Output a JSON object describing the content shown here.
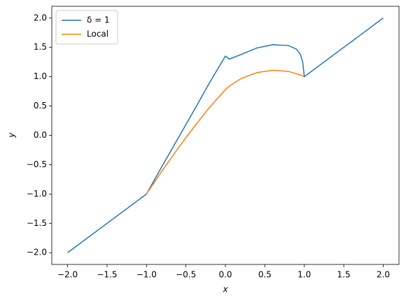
{
  "chart_data": {
    "type": "line",
    "x_label": "x",
    "y_label": "y",
    "x": [
      -2,
      -1.5,
      -1,
      -0.8,
      -0.6,
      -0.4,
      -0.2,
      0,
      0.05,
      0.2,
      0.4,
      0.6,
      0.8,
      0.9,
      0.95,
      0.98,
      1,
      1.5,
      2
    ],
    "series": [
      {
        "name": "δ = 1",
        "color": "#1f77b4",
        "values": [
          -2,
          -1.5,
          -1,
          -0.52,
          -0.05,
          0.42,
          0.9,
          1.35,
          1.3,
          1.38,
          1.49,
          1.545,
          1.53,
          1.47,
          1.38,
          1.25,
          1.0,
          1.5,
          2
        ]
      },
      {
        "name": "Local",
        "color": "#ff7f0e",
        "values": [
          null,
          null,
          -1,
          -0.6,
          -0.22,
          0.14,
          0.48,
          0.78,
          0.84,
          0.97,
          1.07,
          1.11,
          1.09,
          1.05,
          1.03,
          1.01,
          1.0,
          null,
          null
        ]
      }
    ],
    "xlim": [
      -2.2,
      2.2
    ],
    "ylim": [
      -2.2,
      2.2
    ],
    "xticks": [
      {
        "value": -2,
        "label": "−2.0"
      },
      {
        "value": -1.5,
        "label": "−1.5"
      },
      {
        "value": -1,
        "label": "−1.0"
      },
      {
        "value": -0.5,
        "label": "−0.5"
      },
      {
        "value": 0,
        "label": "0.0"
      },
      {
        "value": 0.5,
        "label": "0.5"
      },
      {
        "value": 1,
        "label": "1.0"
      },
      {
        "value": 1.5,
        "label": "1.5"
      },
      {
        "value": 2,
        "label": "2.0"
      }
    ],
    "yticks": [
      {
        "value": -2,
        "label": "−2.0"
      },
      {
        "value": -1.5,
        "label": "−1.5"
      },
      {
        "value": -1,
        "label": "−1.0"
      },
      {
        "value": -0.5,
        "label": "−0.5"
      },
      {
        "value": 0,
        "label": "0.0"
      },
      {
        "value": 0.5,
        "label": "0.5"
      },
      {
        "value": 1,
        "label": "1.0"
      },
      {
        "value": 1.5,
        "label": "1.5"
      },
      {
        "value": 2,
        "label": "2.0"
      }
    ],
    "legend": "upper-left",
    "grid": false
  }
}
